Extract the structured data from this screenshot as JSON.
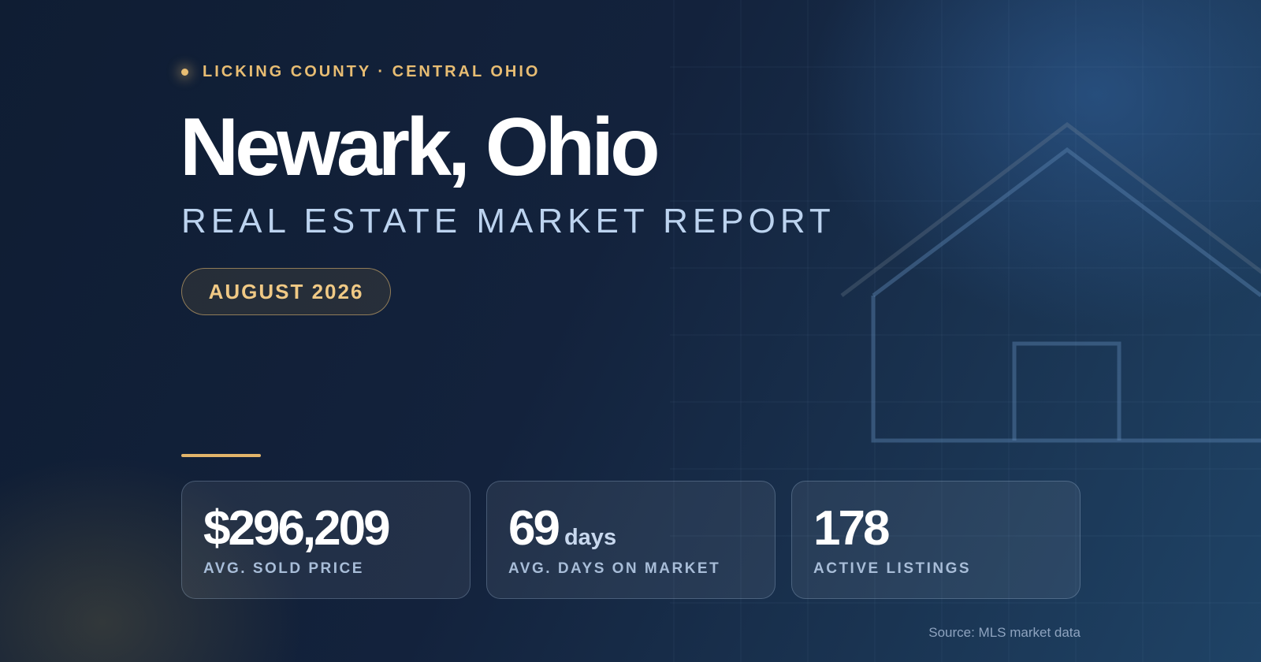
{
  "header": {
    "eyebrow": "LICKING COUNTY · CENTRAL OHIO",
    "title": "Newark, Ohio",
    "subtitle": "REAL ESTATE MARKET REPORT",
    "badge": "AUGUST 2026"
  },
  "stats": [
    {
      "value": "$296,209",
      "label": "AVG. SOLD PRICE"
    },
    {
      "value": "69",
      "unit": "days",
      "label": "AVG. DAYS ON MARKET"
    },
    {
      "value": "178",
      "label": "ACTIVE LISTINGS"
    }
  ],
  "footer": {
    "source": "Source: MLS market data"
  }
}
